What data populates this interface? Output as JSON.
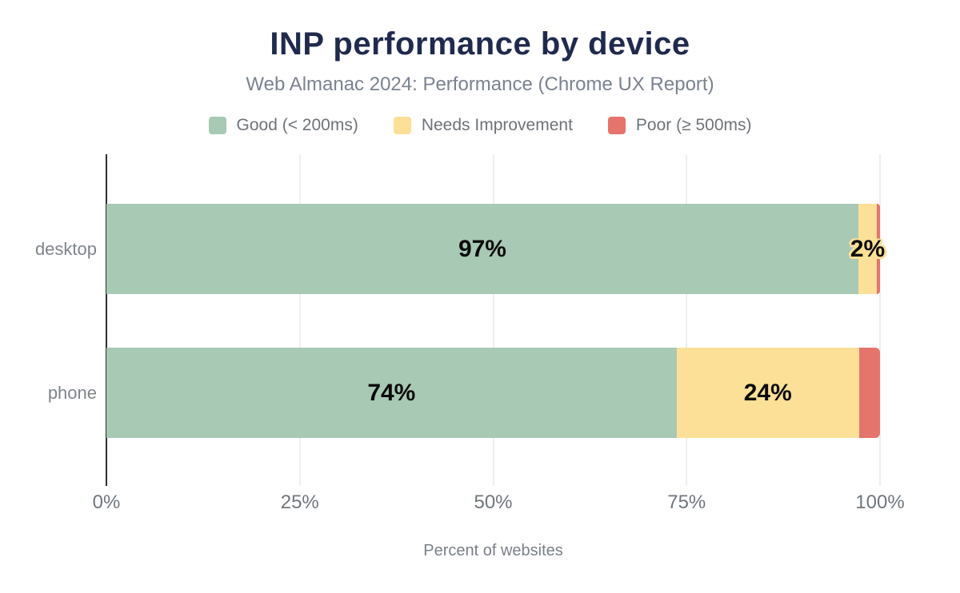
{
  "title": "INP performance by device",
  "subtitle": "Web Almanac 2024: Performance (Chrome UX Report)",
  "legend": [
    {
      "label": "Good (< 200ms)",
      "color": "#a8c9b4"
    },
    {
      "label": "Needs Improvement",
      "color": "#fce098"
    },
    {
      "label": "Poor (≥ 500ms)",
      "color": "#e5746c"
    }
  ],
  "chart_data": {
    "type": "bar",
    "orientation": "horizontal",
    "stacked": true,
    "title": "INP performance by device",
    "subtitle": "Web Almanac 2024: Performance (Chrome UX Report)",
    "xlabel": "Percent of websites",
    "ylabel": "",
    "xlim": [
      0,
      100
    ],
    "x_ticks": [
      "0%",
      "25%",
      "50%",
      "75%",
      "100%"
    ],
    "x_tick_values": [
      0,
      25,
      50,
      75,
      100
    ],
    "grid": "vertical",
    "legend_position": "top",
    "categories": [
      "desktop",
      "phone"
    ],
    "series": [
      {
        "name": "Good (< 200ms)",
        "color": "#a8c9b4",
        "values": [
          97.2,
          73.7
        ],
        "value_labels": [
          "97%",
          "74%"
        ]
      },
      {
        "name": "Needs Improvement",
        "color": "#fce098",
        "values": [
          2.4,
          23.6
        ],
        "value_labels": [
          "2%",
          "24%"
        ]
      },
      {
        "name": "Poor (≥ 500ms)",
        "color": "#e5746c",
        "values": [
          0.4,
          2.7
        ],
        "value_labels": [
          "",
          ""
        ]
      }
    ]
  },
  "colors": {
    "title": "#1f2a4d",
    "subtitle": "#7b8290",
    "axis_line": "#2e2e2e",
    "gridline": "#efefef",
    "good": "#a8c9b4",
    "needs_improvement": "#fce098",
    "poor": "#e5746c",
    "bar_label": "#0b0b0b"
  }
}
